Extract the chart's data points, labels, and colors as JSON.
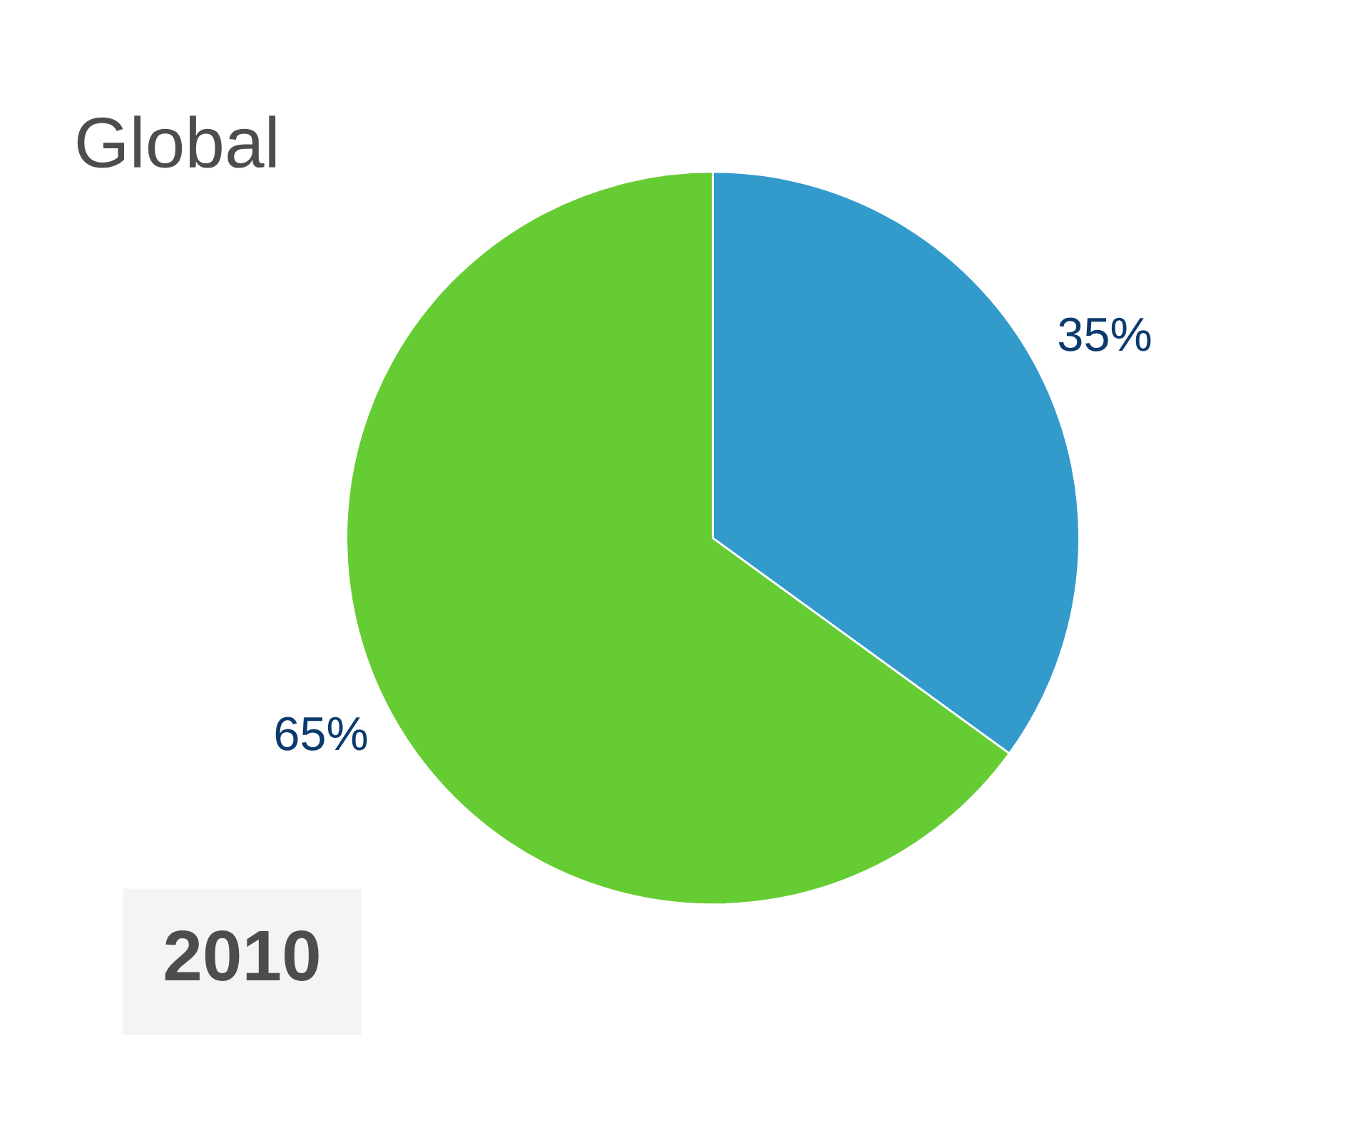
{
  "chart_data": {
    "type": "pie",
    "title": "Global",
    "categories": [
      null,
      null
    ],
    "values": [
      35,
      65
    ],
    "colors": [
      "#339acc",
      "#66cc33"
    ],
    "value_labels": [
      "35%",
      "65%"
    ],
    "annotations": [
      "2010"
    ]
  }
}
